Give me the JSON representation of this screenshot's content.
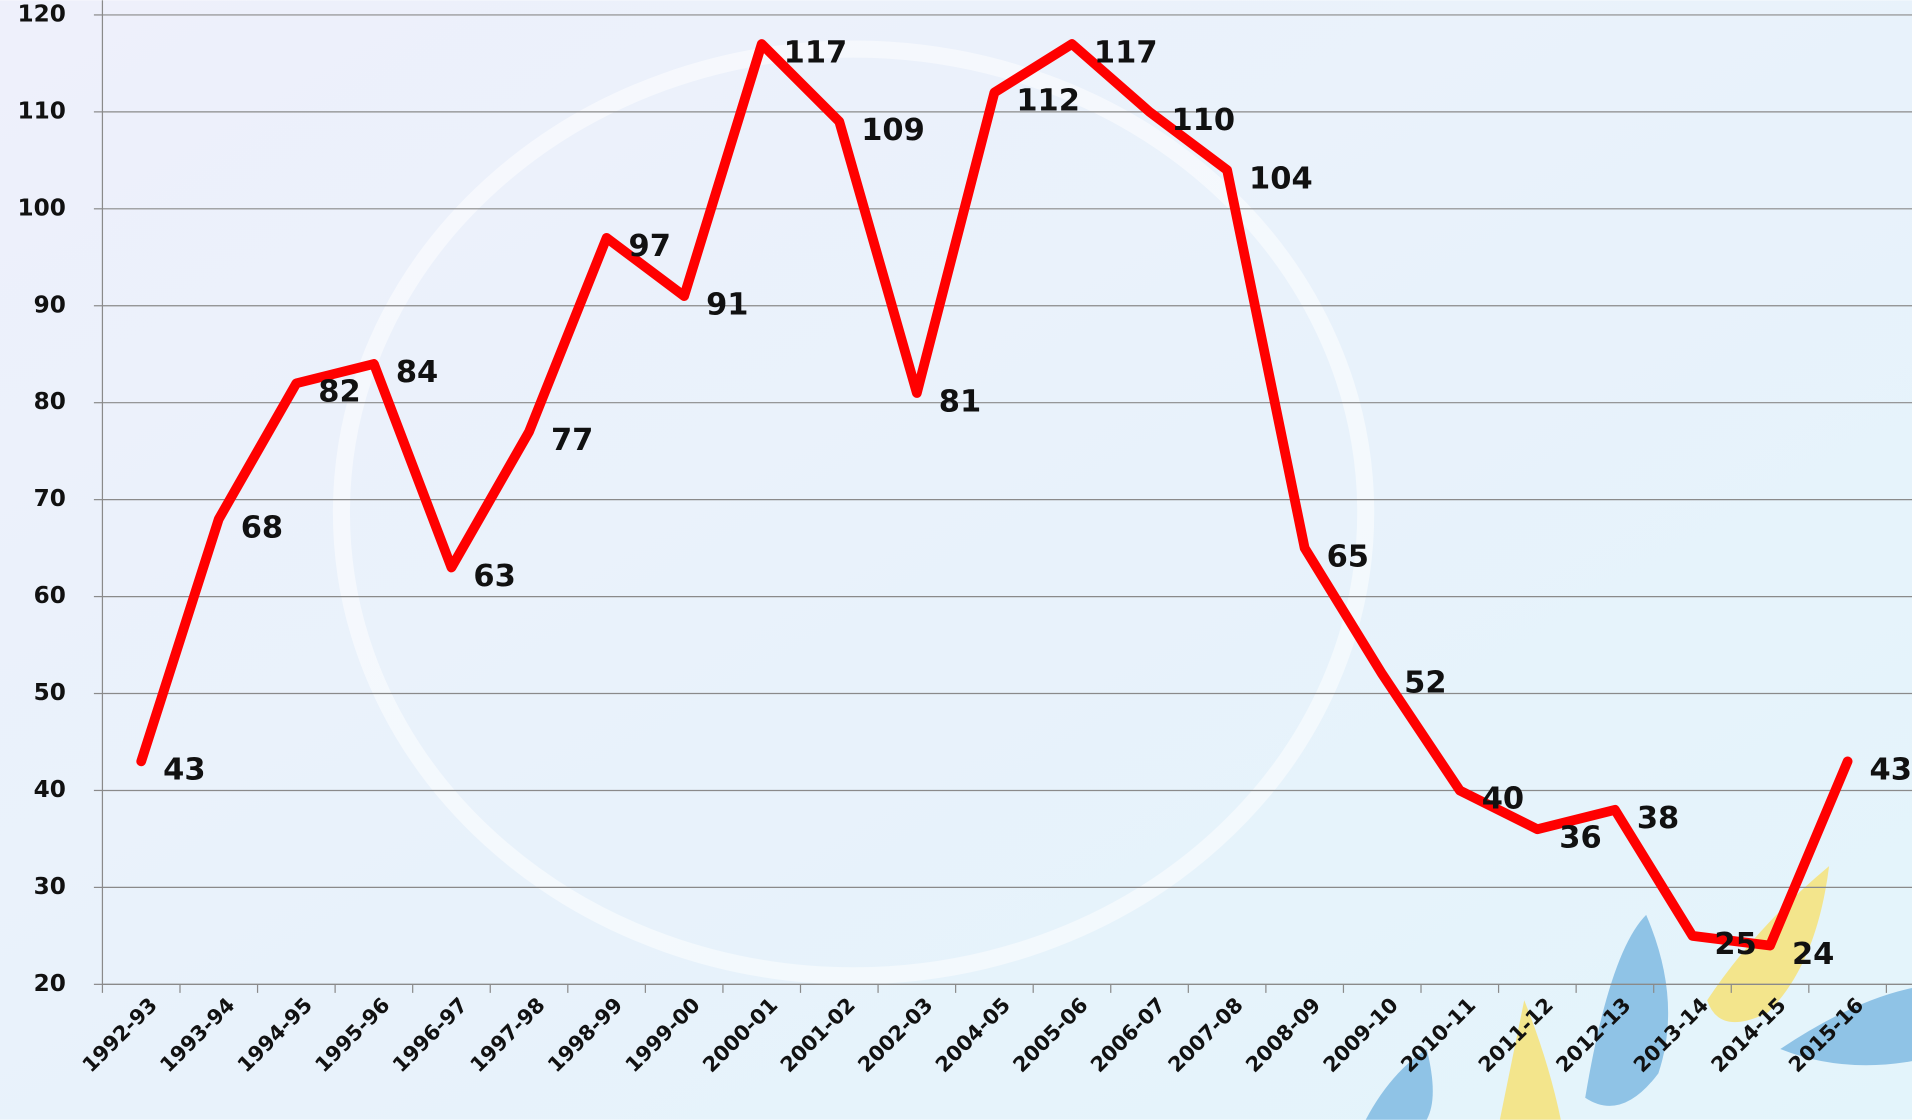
{
  "chart_data": {
    "type": "line",
    "categories": [
      "1992-93",
      "1993-94",
      "1994-95",
      "1995-96",
      "1996-97",
      "1997-98",
      "1998-99",
      "1999-00",
      "2000-01",
      "2001-02",
      "2002-03",
      "2004-05",
      "2005-06",
      "2006-07",
      "2007-08",
      "2008-09",
      "2009-10",
      "2010-11",
      "2011-12",
      "2012-13",
      "2013-14",
      "2014-15",
      "2015-16"
    ],
    "values": [
      43,
      68,
      82,
      84,
      63,
      77,
      97,
      91,
      117,
      109,
      81,
      112,
      117,
      110,
      104,
      65,
      52,
      40,
      36,
      38,
      25,
      24,
      43
    ],
    "color": "#ff0000",
    "ylim": [
      20,
      120
    ],
    "yticks": [
      20,
      30,
      40,
      50,
      60,
      70,
      80,
      90,
      100,
      110,
      120
    ],
    "grid": true
  }
}
